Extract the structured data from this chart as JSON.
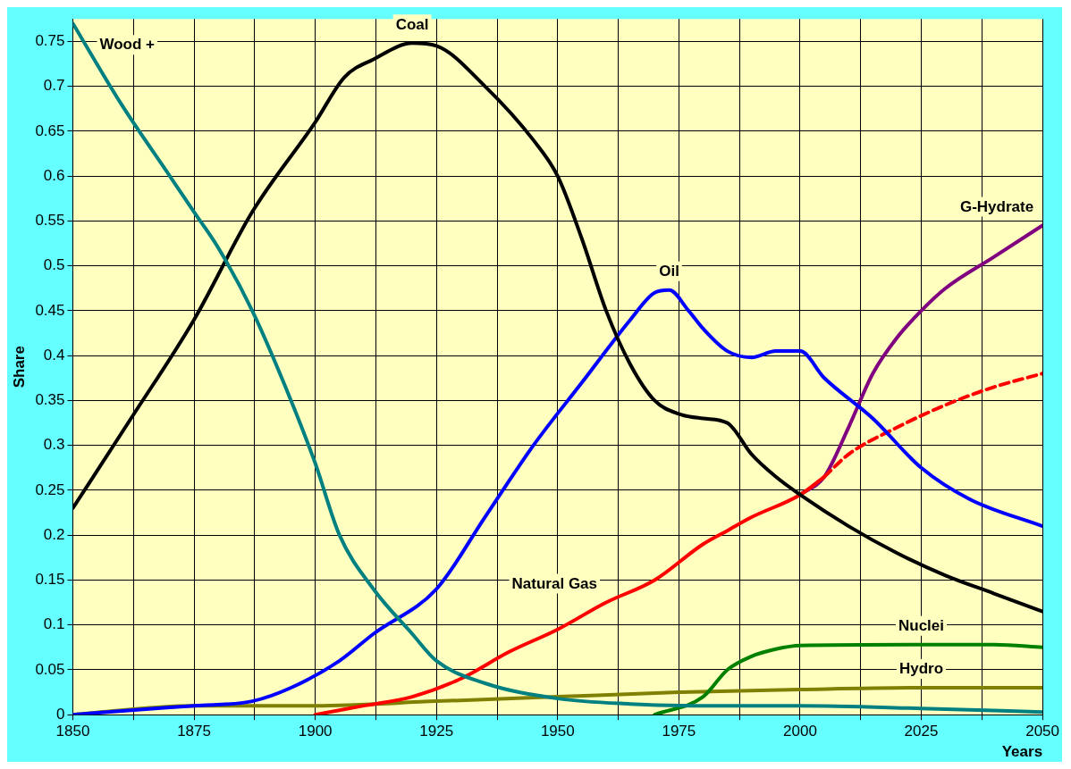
{
  "chart_data": {
    "type": "line",
    "xlabel": "Years",
    "ylabel": "Share",
    "xlim": [
      1850,
      2050
    ],
    "ylim": [
      0,
      0.775
    ],
    "xticks": [
      1850,
      {
        "value": 1862.5,
        "label": null
      },
      1875,
      {
        "value": 1887.5,
        "label": null
      },
      1900,
      {
        "value": 1912.5,
        "label": null
      },
      1925,
      {
        "value": 1937.5,
        "label": null
      },
      1950,
      {
        "value": 1962.5,
        "label": null
      },
      1975,
      {
        "value": 1987.5,
        "label": null
      },
      2000,
      {
        "value": 2012.5,
        "label": null
      },
      2025,
      {
        "value": 2037.5,
        "label": null
      },
      2050
    ],
    "yticks": [
      0,
      0.05,
      0.1,
      0.15,
      0.2,
      0.25,
      0.3,
      0.35,
      0.4,
      0.45,
      0.5,
      0.55,
      0.6,
      0.65,
      0.7,
      0.75
    ],
    "grid": true,
    "legend": false,
    "marker": "none",
    "line_style": "solid",
    "series": [
      {
        "name": "Wood +",
        "color": "#008080",
        "x": [
          1850,
          1860,
          1870,
          1875,
          1880,
          1887,
          1895,
          1900,
          1905,
          1912,
          1920,
          1925,
          1935,
          1950,
          1965,
          1980,
          2000,
          2025,
          2050
        ],
        "values": [
          0.77,
          0.68,
          0.6,
          0.56,
          0.52,
          0.45,
          0.35,
          0.28,
          0.2,
          0.14,
          0.09,
          0.06,
          0.035,
          0.018,
          0.012,
          0.01,
          0.01,
          0.007,
          0.003
        ]
      },
      {
        "name": "Coal",
        "color": "#000000",
        "x": [
          1850,
          1862,
          1875,
          1887,
          1900,
          1906,
          1912,
          1920,
          1925,
          1935,
          1945,
          1950,
          1955,
          1960,
          1965,
          1970,
          1975,
          1980,
          1985,
          1990,
          1995,
          2000,
          2010,
          2020,
          2030,
          2040,
          2050
        ],
        "values": [
          0.23,
          0.33,
          0.44,
          0.56,
          0.66,
          0.71,
          0.73,
          0.748,
          0.745,
          0.7,
          0.64,
          0.6,
          0.53,
          0.45,
          0.39,
          0.35,
          0.335,
          0.33,
          0.325,
          0.29,
          0.265,
          0.245,
          0.21,
          0.18,
          0.155,
          0.135,
          0.115
        ]
      },
      {
        "name": "Oil",
        "color": "#0000ff",
        "x": [
          1850,
          1862,
          1875,
          1887,
          1895,
          1905,
          1912,
          1925,
          1935,
          1945,
          1955,
          1965,
          1970,
          1973,
          1977,
          1980,
          1985,
          1990,
          1995,
          2000,
          2005,
          2015,
          2025,
          2035,
          2050
        ],
        "values": [
          0,
          0.005,
          0.01,
          0.015,
          0.03,
          0.06,
          0.09,
          0.14,
          0.22,
          0.3,
          0.37,
          0.44,
          0.47,
          0.473,
          0.45,
          0.43,
          0.405,
          0.398,
          0.405,
          0.405,
          0.375,
          0.33,
          0.275,
          0.24,
          0.21
        ]
      },
      {
        "name": "Natural Gas",
        "color": "#ff0000",
        "x": [
          1900,
          1910,
          1920,
          1930,
          1940,
          1950,
          1960,
          1970,
          1980,
          1985,
          1990,
          2000,
          2005
        ],
        "values": [
          0,
          0.01,
          0.02,
          0.04,
          0.07,
          0.095,
          0.125,
          0.15,
          0.19,
          0.205,
          0.22,
          0.245,
          0.265
        ]
      },
      {
        "color": "#ff0000",
        "line_style": "dashed",
        "x": [
          2005,
          2010,
          2020,
          2030,
          2040,
          2050
        ],
        "values": [
          0.265,
          0.29,
          0.32,
          0.345,
          0.365,
          0.38
        ]
      },
      {
        "name": "G-Hydrate",
        "color": "#800080",
        "x": [
          2000,
          2005,
          2010,
          2015,
          2020,
          2025,
          2030,
          2040,
          2050
        ],
        "values": [
          0.245,
          0.265,
          0.32,
          0.38,
          0.42,
          0.45,
          0.475,
          0.51,
          0.545
        ]
      },
      {
        "name": "Nuclei",
        "color": "#008000",
        "x": [
          1970,
          1980,
          1985,
          1990,
          1995,
          2000,
          2025,
          2040,
          2050
        ],
        "values": [
          0,
          0.02,
          0.05,
          0.065,
          0.073,
          0.077,
          0.078,
          0.078,
          0.075
        ]
      },
      {
        "name": "Hydro",
        "color": "#808000",
        "x": [
          1850,
          1875,
          1900,
          1925,
          1950,
          1975,
          2000,
          2025,
          2050
        ],
        "values": [
          0,
          0.01,
          0.01,
          0.015,
          0.02,
          0.025,
          0.028,
          0.03,
          0.03
        ]
      }
    ]
  }
}
